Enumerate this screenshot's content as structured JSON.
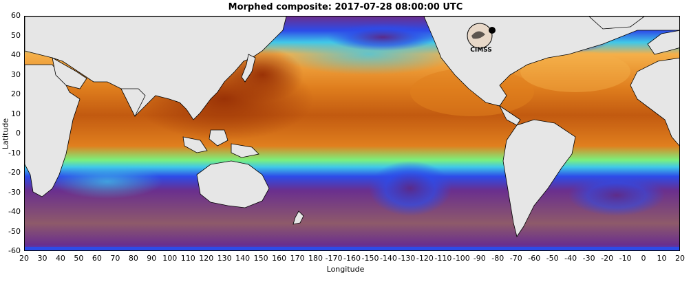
{
  "title": "Morphed composite: 2017-07-28 08:00:00 UTC",
  "axes": {
    "xlabel": "Longitude",
    "ylabel": "Latitude",
    "x_ticks": [
      "20",
      "30",
      "40",
      "50",
      "60",
      "70",
      "80",
      "90",
      "100",
      "110",
      "120",
      "130",
      "140",
      "150",
      "160",
      "170",
      "180",
      "-170",
      "-160",
      "-150",
      "-140",
      "-130",
      "-120",
      "-110",
      "-100",
      "-90",
      "-80",
      "-70",
      "-60",
      "-50",
      "-40",
      "-30",
      "-20",
      "-10",
      "0",
      "10",
      "20"
    ],
    "y_ticks": [
      "60",
      "50",
      "40",
      "30",
      "20",
      "10",
      "0",
      "-10",
      "-20",
      "-30",
      "-40",
      "-50",
      "-60"
    ]
  },
  "logo": {
    "text": "CIMSS",
    "icon": "cimss-logo-icon"
  },
  "colors": {
    "land": "#e6e6e6",
    "coastline": "#000000",
    "moist_high": "#a03c08",
    "moist_mid": "#e07f1e",
    "moist_low": "#f5b04a",
    "transition": "#7cf07c",
    "cyan": "#40c8e8",
    "blue": "#2d4be8",
    "dry_purple": "#6a2f8e",
    "dry_brown": "#8e5a6a"
  }
}
